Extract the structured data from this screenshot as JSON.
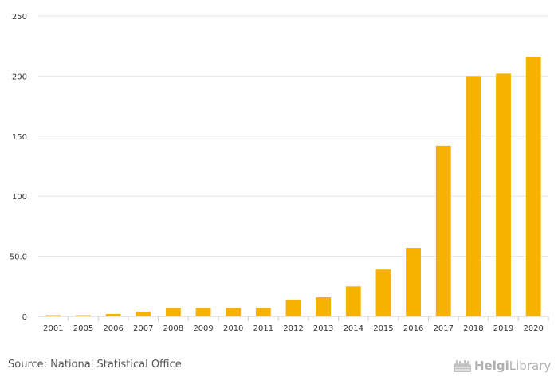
{
  "chart_data": {
    "type": "bar",
    "categories": [
      "2001",
      "2005",
      "2006",
      "2007",
      "2008",
      "2009",
      "2010",
      "2011",
      "2012",
      "2013",
      "2014",
      "2015",
      "2016",
      "2017",
      "2018",
      "2019",
      "2020"
    ],
    "values": [
      1,
      1,
      2,
      4,
      7,
      7,
      7,
      7,
      14,
      16,
      25,
      39,
      57,
      142,
      200,
      202,
      216
    ],
    "ylim": [
      0,
      250
    ],
    "yticks": [
      0,
      50,
      100,
      150,
      200,
      250
    ],
    "ytick_labels": [
      "0",
      "50.0",
      "100",
      "150",
      "200",
      "250"
    ],
    "bar_color": "#F7B100",
    "grid": true,
    "title": "",
    "xlabel": "",
    "ylabel": ""
  },
  "footer": {
    "source": "Source: National Statistical Office",
    "logo_light": "Helgi",
    "logo_bold": "Library",
    "logo_color": "#b0b0b0"
  }
}
